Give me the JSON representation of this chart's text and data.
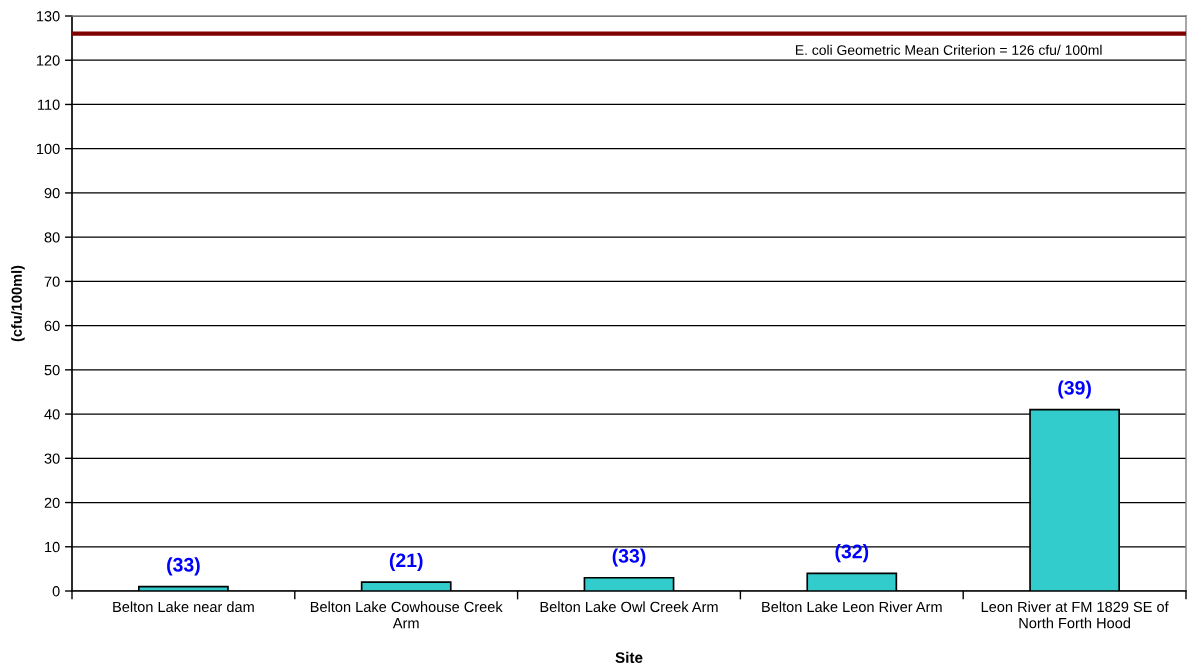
{
  "chart_data": {
    "type": "bar",
    "xlabel": "Site",
    "ylabel": "(cfu/100ml)",
    "categories": [
      "Belton Lake near dam",
      "Belton Lake Cowhouse Creek Arm",
      "Belton Lake Owl Creek Arm",
      "Belton Lake Leon River Arm",
      "Leon River at FM 1829 SE of North Forth Hood"
    ],
    "values": [
      1,
      2,
      3,
      4,
      41
    ],
    "color": "#33cccc",
    "annotations": [
      {
        "text": "(33)",
        "x": "Belton Lake near dam",
        "y": 1
      },
      {
        "text": "(21)",
        "x": "Belton Lake Cowhouse Creek Arm",
        "y": 2
      },
      {
        "text": "(33)",
        "x": "Belton Lake Owl Creek Arm",
        "y": 3
      },
      {
        "text": "(32)",
        "x": "Belton Lake Leon River Arm",
        "y": 4
      },
      {
        "text": "(39)",
        "x": "Leon River at FM 1829 SE of North Forth Hood",
        "y": 41
      }
    ],
    "ylim": [
      0,
      130
    ],
    "yticks": [
      0,
      10,
      20,
      30,
      40,
      50,
      60,
      70,
      80,
      90,
      100,
      110,
      120,
      130
    ],
    "ref_lines": [
      {
        "axis": "y",
        "value": 126,
        "label": "E. coli Geometric Mean Criterion = 126 cfu/ 100ml",
        "color": "#800000"
      }
    ],
    "grid": "y"
  }
}
